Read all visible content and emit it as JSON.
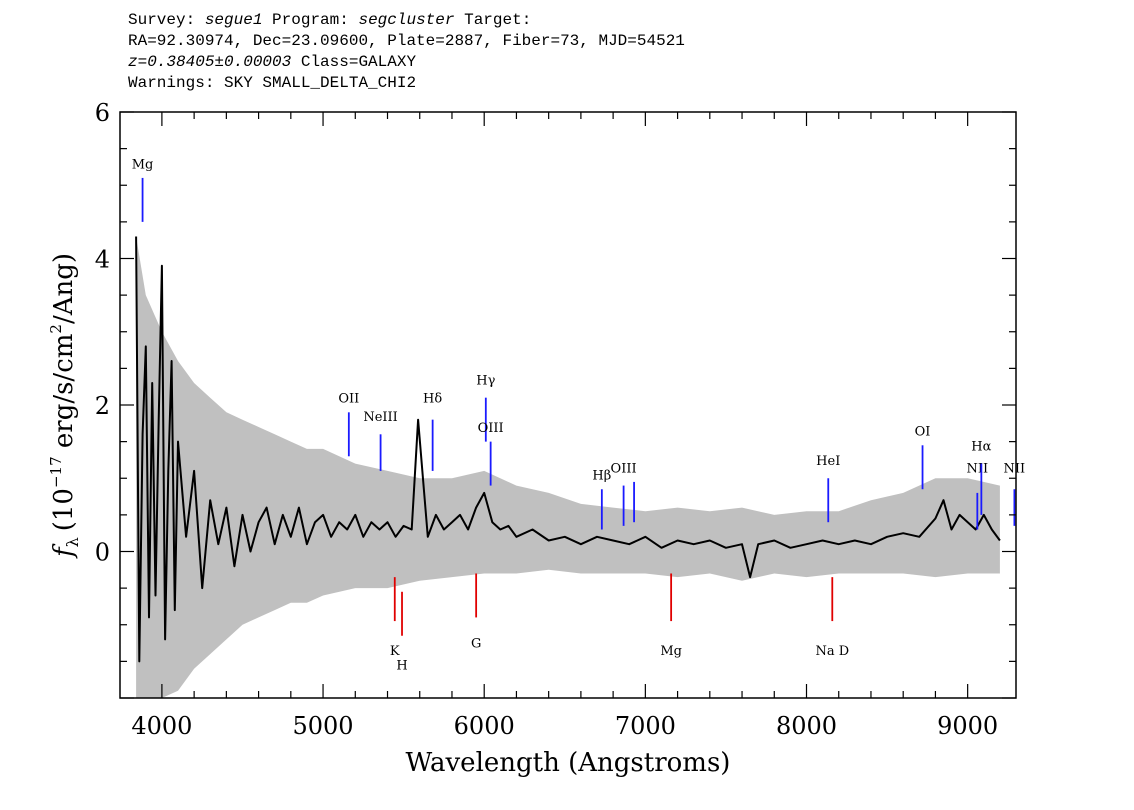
{
  "header": {
    "survey_label": "Survey:",
    "survey": "segue1",
    "program_label": "Program:",
    "program": "segcluster",
    "target_label": "Target:",
    "line2": "RA=92.30974, Dec=23.09600, Plate=2887, Fiber=73, MJD=54521",
    "redshift": "z=0.38405±0.00003",
    "class": "Class=GALAXY",
    "warnings": "Warnings: SKY SMALL_DELTA_CHI2"
  },
  "chart_data": {
    "type": "line",
    "xlabel": "Wavelength (Angstroms)",
    "ylabel": "f_λ (10^-17 erg/s/cm^2/Ang)",
    "ylabel_parts": {
      "f": "f",
      "sub": "λ",
      "open": "(10",
      "exp": "−17",
      "mid": " erg/s/cm",
      "exp2": "2",
      "close": "/Ang)"
    },
    "xlim": [
      3740,
      9300
    ],
    "ylim": [
      -2.0,
      6.0
    ],
    "x_ticks": [
      4000,
      5000,
      6000,
      7000,
      8000,
      9000
    ],
    "y_ticks": [
      0,
      2,
      4,
      6
    ],
    "grid": false,
    "series": [
      {
        "role": "uncertainty-envelope",
        "color": "#c0c0c0",
        "x": [
          3840,
          3900,
          4000,
          4100,
          4200,
          4300,
          4400,
          4500,
          4600,
          4700,
          4800,
          4900,
          5000,
          5200,
          5400,
          5600,
          5800,
          6000,
          6200,
          6400,
          6600,
          6800,
          7000,
          7200,
          7400,
          7600,
          7800,
          8000,
          8200,
          8400,
          8600,
          8800,
          9000,
          9200
        ],
        "upper": [
          4.3,
          3.5,
          3.0,
          2.6,
          2.3,
          2.1,
          1.9,
          1.8,
          1.7,
          1.6,
          1.5,
          1.4,
          1.4,
          1.2,
          1.1,
          1.0,
          1.0,
          1.1,
          0.9,
          0.8,
          0.65,
          0.6,
          0.55,
          0.6,
          0.55,
          0.6,
          0.5,
          0.55,
          0.55,
          0.7,
          0.8,
          1.0,
          1.0,
          0.9
        ],
        "lower": [
          -2.0,
          -2.0,
          -2.0,
          -1.9,
          -1.6,
          -1.4,
          -1.2,
          -1.0,
          -0.9,
          -0.8,
          -0.7,
          -0.7,
          -0.6,
          -0.5,
          -0.5,
          -0.4,
          -0.35,
          -0.3,
          -0.3,
          -0.25,
          -0.3,
          -0.3,
          -0.3,
          -0.35,
          -0.3,
          -0.4,
          -0.3,
          -0.35,
          -0.3,
          -0.3,
          -0.3,
          -0.35,
          -0.3,
          -0.3
        ]
      },
      {
        "role": "flux",
        "color": "#000000",
        "x": [
          3840,
          3860,
          3880,
          3900,
          3920,
          3940,
          3960,
          3980,
          4000,
          4020,
          4040,
          4060,
          4080,
          4100,
          4150,
          4200,
          4250,
          4300,
          4350,
          4400,
          4450,
          4500,
          4550,
          4600,
          4650,
          4700,
          4750,
          4800,
          4850,
          4900,
          4950,
          5000,
          5050,
          5100,
          5150,
          5200,
          5250,
          5300,
          5350,
          5400,
          5450,
          5500,
          5550,
          5590,
          5650,
          5700,
          5750,
          5800,
          5850,
          5900,
          5950,
          6000,
          6050,
          6100,
          6150,
          6200,
          6300,
          6400,
          6500,
          6600,
          6700,
          6800,
          6900,
          7000,
          7100,
          7200,
          7300,
          7400,
          7500,
          7600,
          7650,
          7700,
          7800,
          7900,
          8000,
          8100,
          8200,
          8300,
          8400,
          8500,
          8600,
          8700,
          8800,
          8850,
          8900,
          8950,
          9000,
          9050,
          9100,
          9150,
          9200
        ],
        "y": [
          4.3,
          -1.5,
          1.6,
          2.8,
          -0.9,
          2.3,
          -0.6,
          1.8,
          3.9,
          -1.2,
          1.1,
          2.6,
          -0.8,
          1.5,
          0.2,
          1.1,
          -0.5,
          0.7,
          0.1,
          0.6,
          -0.2,
          0.5,
          0.0,
          0.4,
          0.6,
          0.1,
          0.5,
          0.2,
          0.6,
          0.1,
          0.4,
          0.5,
          0.2,
          0.4,
          0.3,
          0.5,
          0.2,
          0.4,
          0.3,
          0.4,
          0.2,
          0.35,
          0.3,
          1.8,
          0.2,
          0.5,
          0.3,
          0.4,
          0.5,
          0.3,
          0.6,
          0.8,
          0.4,
          0.3,
          0.35,
          0.2,
          0.3,
          0.15,
          0.2,
          0.1,
          0.2,
          0.15,
          0.1,
          0.2,
          0.05,
          0.15,
          0.1,
          0.15,
          0.05,
          0.1,
          -0.35,
          0.1,
          0.15,
          0.05,
          0.1,
          0.15,
          0.1,
          0.15,
          0.1,
          0.2,
          0.25,
          0.2,
          0.45,
          0.7,
          0.3,
          0.5,
          0.4,
          0.3,
          0.5,
          0.3,
          0.15
        ]
      }
    ],
    "emission_lines": [
      {
        "label": "Mg",
        "x": 3880,
        "y_top": 5.1,
        "y_bottom": 4.5,
        "label_y": 5.15,
        "color": "#1a1aff"
      },
      {
        "label": "OII",
        "x": 5160,
        "y_top": 1.9,
        "y_bottom": 1.3,
        "label_y": 1.95,
        "color": "#1a1aff"
      },
      {
        "label": "NeIII",
        "x": 5357,
        "y_top": 1.6,
        "y_bottom": 1.1,
        "label_y": 1.7,
        "color": "#1a1aff"
      },
      {
        "label": "Hδ",
        "x": 5680,
        "y_top": 1.8,
        "y_bottom": 1.1,
        "label_y": 1.95,
        "color": "#1a1aff"
      },
      {
        "label": "Hγ",
        "x": 6010,
        "y_top": 2.1,
        "y_bottom": 1.5,
        "label_y": 2.2,
        "color": "#1a1aff"
      },
      {
        "label": "OIII",
        "x": 6040,
        "y_top": 1.5,
        "y_bottom": 0.9,
        "label_y": 1.55,
        "color": "#1a1aff"
      },
      {
        "label": "Hβ",
        "x": 6730,
        "y_top": 0.85,
        "y_bottom": 0.3,
        "label_y": 0.9,
        "color": "#1a1aff"
      },
      {
        "label": "OIII",
        "x": 6865,
        "y_top": 0.9,
        "y_bottom": 0.35,
        "label_y": 1.0,
        "color": "#1a1aff"
      },
      {
        "label": "",
        "x": 6930,
        "y_top": 0.95,
        "y_bottom": 0.4,
        "label_y": 1.0,
        "color": "#1a1aff"
      },
      {
        "label": "HeI",
        "x": 8135,
        "y_top": 1.0,
        "y_bottom": 0.4,
        "label_y": 1.1,
        "color": "#1a1aff"
      },
      {
        "label": "OI",
        "x": 8720,
        "y_top": 1.45,
        "y_bottom": 0.85,
        "label_y": 1.5,
        "color": "#1a1aff"
      },
      {
        "label": "NII",
        "x": 9060,
        "y_top": 0.8,
        "y_bottom": 0.3,
        "label_y": 1.0,
        "color": "#1a1aff"
      },
      {
        "label": "Hα",
        "x": 9085,
        "y_top": 1.2,
        "y_bottom": 0.5,
        "label_y": 1.3,
        "color": "#1a1aff"
      },
      {
        "label": "NII",
        "x": 9290,
        "y_top": 0.85,
        "y_bottom": 0.35,
        "label_y": 1.0,
        "color": "#1a1aff"
      }
    ],
    "absorption_lines": [
      {
        "label": "K",
        "x": 5445,
        "y_top": -0.35,
        "y_bottom": -0.95,
        "label_y": -1.25,
        "color": "#e00000"
      },
      {
        "label": "H",
        "x": 5490,
        "y_top": -0.55,
        "y_bottom": -1.15,
        "label_y": -1.45,
        "color": "#e00000"
      },
      {
        "label": "G",
        "x": 5950,
        "y_top": -0.3,
        "y_bottom": -0.9,
        "label_y": -1.15,
        "color": "#e00000"
      },
      {
        "label": "Mg",
        "x": 7160,
        "y_top": -0.3,
        "y_bottom": -0.95,
        "label_y": -1.25,
        "color": "#e00000"
      },
      {
        "label": "Na D",
        "x": 8160,
        "y_top": -0.35,
        "y_bottom": -0.95,
        "label_y": -1.25,
        "color": "#e00000"
      }
    ]
  }
}
